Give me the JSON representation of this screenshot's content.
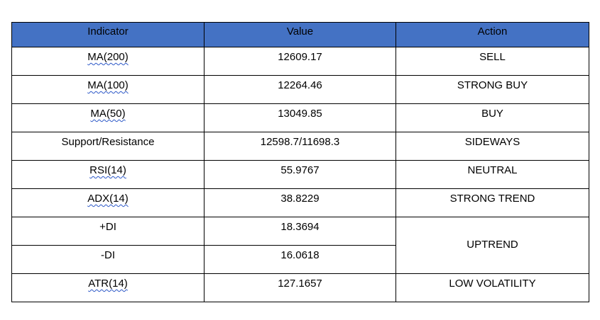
{
  "table": {
    "headers": [
      "Indicator",
      "Value",
      "Action"
    ],
    "rows": [
      {
        "indicator": "MA(200)",
        "value": "12609.17",
        "action": "SELL"
      },
      {
        "indicator": "MA(100)",
        "value": "12264.46",
        "action": "STRONG BUY"
      },
      {
        "indicator": "MA(50)",
        "value": "13049.85",
        "action": "BUY"
      },
      {
        "indicator": "Support/Resistance",
        "value": "12598.7/11698.3",
        "action": "SIDEWAYS"
      },
      {
        "indicator": "RSI(14)",
        "value": "55.9767",
        "action": "NEUTRAL"
      },
      {
        "indicator": "ADX(14)",
        "value": "38.8229",
        "action": "STRONG TREND"
      },
      {
        "indicator": "+DI",
        "value": "18.3694",
        "action": "UPTREND"
      },
      {
        "indicator": "-DI",
        "value": "16.0618",
        "action": ""
      },
      {
        "indicator": "ATR(14)",
        "value": "127.1657",
        "action": "LOW VOLATILITY"
      }
    ]
  },
  "colors": {
    "header_background": "#4472c4",
    "border": "#000000",
    "spellcheck_underline": "#2b57c7"
  }
}
